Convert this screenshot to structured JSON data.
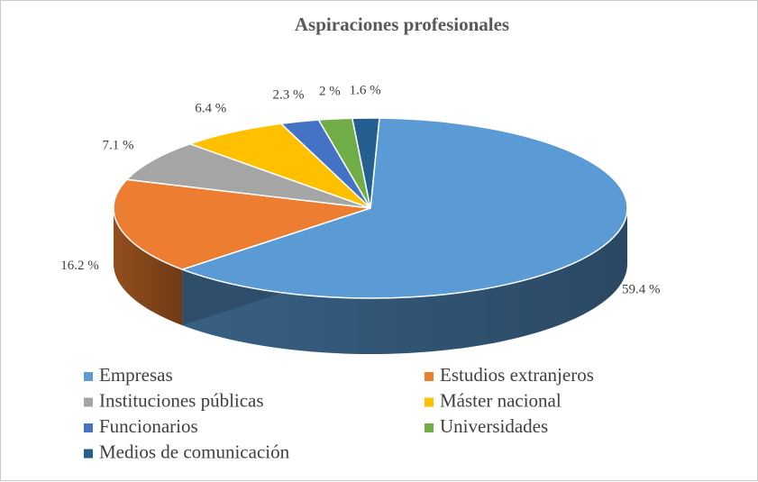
{
  "chart_data": {
    "type": "pie",
    "title": "Aspiraciones profesionales",
    "categories": [
      "Empresas",
      "Estudios extranjeros",
      "Instituciones públicas",
      "Máster nacional",
      "Funcionarios",
      "Universidades",
      "Medios de comunicación"
    ],
    "values": [
      59.4,
      16.2,
      7.1,
      6.4,
      2.3,
      2,
      1.6
    ],
    "labels": [
      "59.4 %",
      "16.2 %",
      "7.1 %",
      "6.4 %",
      "2.3 %",
      "2 %",
      "1.6 %"
    ],
    "colors": [
      "#5B9BD5",
      "#ED7D31",
      "#A5A5A5",
      "#FFC000",
      "#4472C4",
      "#70AD47",
      "#255E91"
    ],
    "legend_position": "bottom",
    "style": "3d"
  }
}
